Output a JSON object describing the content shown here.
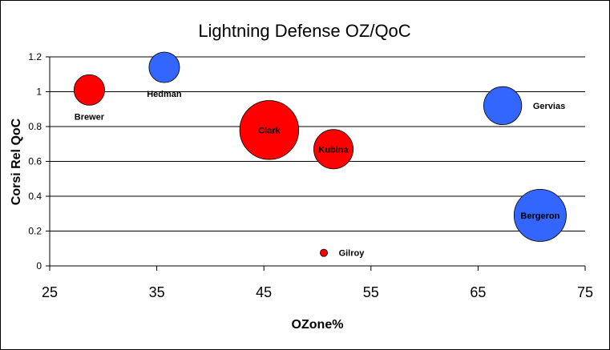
{
  "chart_data": {
    "type": "bubble",
    "title": "Lightning Defense OZ/QoC",
    "xlabel": "OZone%",
    "ylabel": "Corsi Rel QoC",
    "xlim": [
      25,
      75
    ],
    "ylim": [
      0,
      1.2
    ],
    "xticks": [
      "25",
      "35",
      "45",
      "55",
      "65",
      "75"
    ],
    "yticks": [
      "0",
      "0.2",
      "0.4",
      "0.6",
      "0.8",
      "1",
      "1.2"
    ],
    "grid": true,
    "colors": {
      "red": "#ff0000",
      "blue": "#3366ff"
    },
    "points": [
      {
        "name": "Brewer",
        "x": 28.7,
        "y": 1.01,
        "size": 3.5,
        "color": "red",
        "label_pos": "below"
      },
      {
        "name": "Hedman",
        "x": 35.7,
        "y": 1.14,
        "size": 3.5,
        "color": "blue",
        "label_pos": "below"
      },
      {
        "name": "Clark",
        "x": 45.5,
        "y": 0.78,
        "size": 13,
        "color": "red",
        "label_pos": "center"
      },
      {
        "name": "Kubina",
        "x": 51.5,
        "y": 0.67,
        "size": 5.8,
        "color": "red",
        "label_pos": "center"
      },
      {
        "name": "Gervias",
        "x": 67.3,
        "y": 0.92,
        "size": 5.4,
        "color": "blue",
        "label_pos": "right"
      },
      {
        "name": "Bergeron",
        "x": 70.8,
        "y": 0.29,
        "size": 10.2,
        "color": "blue",
        "label_pos": "center"
      },
      {
        "name": "Gilroy",
        "x": 50.6,
        "y": 0.075,
        "size": 0.2,
        "color": "red",
        "label_pos": "right"
      }
    ]
  }
}
